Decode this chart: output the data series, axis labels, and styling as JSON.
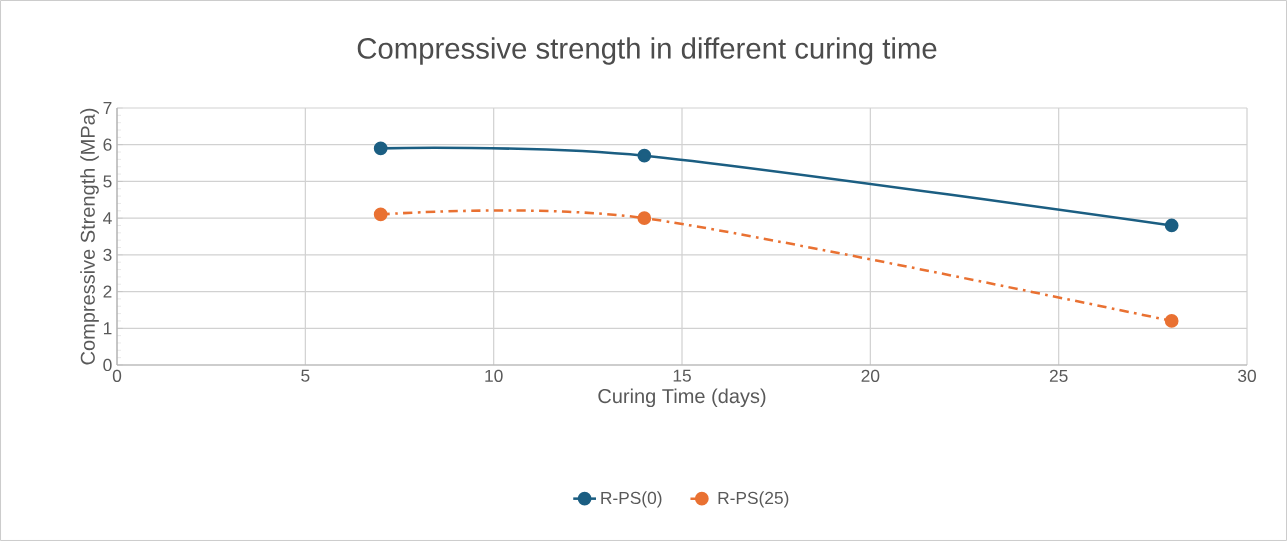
{
  "chart_data": {
    "type": "line",
    "title": "Compressive strength in different curing time",
    "xlabel": "Curing Time (days)",
    "ylabel": "Compressive Strength (MPa)",
    "x": [
      7,
      14,
      28
    ],
    "series": [
      {
        "name": "R-PS(0)",
        "color": "#1b5e82",
        "values": [
          5.9,
          5.7,
          3.8
        ],
        "line_style": "solid"
      },
      {
        "name": "R-PS(25)",
        "color": "#e97132",
        "values": [
          4.1,
          4.0,
          1.2
        ],
        "line_style": "dashed"
      }
    ],
    "xlim": [
      0,
      30
    ],
    "xticks": [
      0,
      5,
      10,
      15,
      20,
      25,
      30
    ],
    "ylim": [
      0,
      7
    ],
    "yticks": [
      0,
      1,
      2,
      3,
      4,
      5,
      6,
      7
    ],
    "grid": true,
    "legend": "bottom",
    "marker": "circle"
  }
}
